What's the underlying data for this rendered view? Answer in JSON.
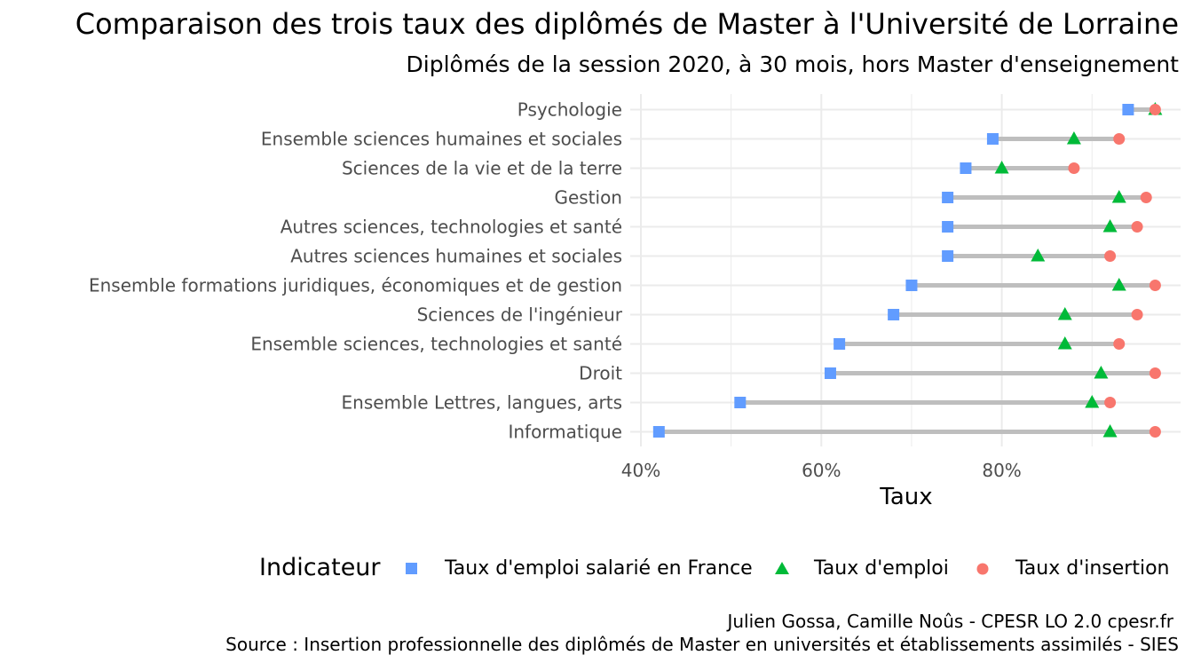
{
  "chart_data": {
    "type": "scatter",
    "title": "Comparaison des trois taux des diplômés de Master à l'Université de Lorraine",
    "subtitle": "Diplômés de la session 2020, à 30 mois, hors Master d'enseignement",
    "xlabel": "Taux",
    "ylabel": "",
    "xlim": [
      0.4,
      0.97
    ],
    "x_ticks": [
      {
        "value": 0.4,
        "label": "40%"
      },
      {
        "value": 0.6,
        "label": "60%"
      },
      {
        "value": 0.8,
        "label": "80%"
      }
    ],
    "grid": true,
    "legend_position": "bottom",
    "legend_title": "Indicateur",
    "categories": [
      "Psychologie",
      "Ensemble sciences humaines et sociales",
      "Sciences de la vie et de la terre",
      "Gestion",
      "Autres sciences, technologies et santé",
      "Autres sciences humaines et sociales",
      "Ensemble formations juridiques, économiques et de gestion",
      "Sciences de l'ingénieur",
      "Ensemble sciences, technologies et santé",
      "Droit",
      "Ensemble Lettres, langues, arts",
      "Informatique"
    ],
    "series": [
      {
        "name": "Taux d'emploi salarié en France",
        "color": "#619CFF",
        "marker": "square",
        "values": [
          0.94,
          0.79,
          0.76,
          0.74,
          0.74,
          0.74,
          0.7,
          0.68,
          0.62,
          0.61,
          0.51,
          0.42
        ]
      },
      {
        "name": "Taux d'emploi",
        "color": "#00BA38",
        "marker": "triangle",
        "values": [
          0.97,
          0.88,
          0.8,
          0.93,
          0.92,
          0.84,
          0.93,
          0.87,
          0.87,
          0.91,
          0.9,
          0.92
        ]
      },
      {
        "name": "Taux d'insertion",
        "color": "#F8766D",
        "marker": "circle",
        "values": [
          0.97,
          0.93,
          0.88,
          0.96,
          0.95,
          0.92,
          0.97,
          0.95,
          0.93,
          0.97,
          0.92,
          0.97
        ]
      }
    ],
    "segment_color": "#BEBEBE"
  },
  "caption_author": "Julien Gossa, Camille Noûs - CPESR LO 2.0 cpesr.fr",
  "caption_source": "Source : Insertion professionnelle des diplômés de Master en universités et établissements assimilés - SIES"
}
